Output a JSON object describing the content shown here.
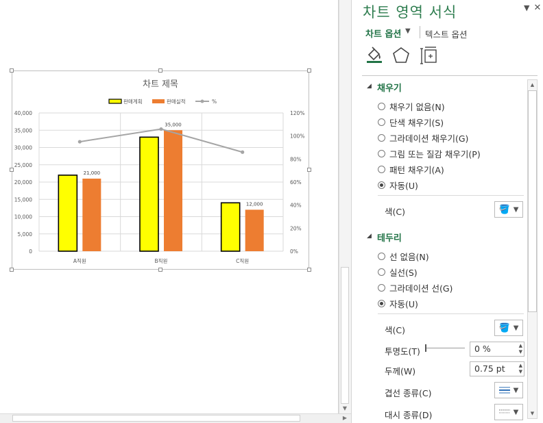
{
  "chart_data": {
    "type": "bar",
    "title": "차트 제목",
    "categories": [
      "A직원",
      "B직원",
      "C직원"
    ],
    "series": [
      {
        "name": "판매계획",
        "values": [
          22000,
          33000,
          14000
        ],
        "color": "#ffff00",
        "border": "#000000",
        "axis": "left"
      },
      {
        "name": "판매실적",
        "values": [
          21000,
          35000,
          12000
        ],
        "color": "#ed7d31",
        "axis": "left"
      },
      {
        "name": "%",
        "type": "line",
        "values": [
          95,
          106,
          86
        ],
        "color": "#a5a5a5",
        "axis": "right"
      }
    ],
    "data_labels": {
      "series": "판매실적",
      "show_for": [
        0,
        1,
        2
      ],
      "texts": [
        "21,000",
        "35,000",
        "12,000"
      ]
    },
    "y_left": {
      "min": 0,
      "max": 40000,
      "ticks": [
        "0",
        "5,000",
        "10,000",
        "15,000",
        "20,000",
        "25,000",
        "30,000",
        "35,000",
        "40,000"
      ]
    },
    "y_right": {
      "min": 0,
      "max": 120,
      "ticks": [
        "0%",
        "20%",
        "40%",
        "60%",
        "80%",
        "100%",
        "120%"
      ]
    },
    "grid": "horizontal",
    "legend_position": "top"
  },
  "pane": {
    "title": "차트 영역 서식",
    "tab_chart": "차트 옵션",
    "tab_text": "텍스트 옵션",
    "icons": [
      "fill-line-icon",
      "effects-pentagon-icon",
      "size-properties-icon"
    ],
    "fill": {
      "heading": "채우기",
      "options": [
        "채우기 없음(N)",
        "단색 채우기(S)",
        "그라데이션 채우기(G)",
        "그림 또는 질감 채우기(P)",
        "패턴 채우기(A)",
        "자동(U)"
      ],
      "selected": 5,
      "color_label": "색(C)"
    },
    "border": {
      "heading": "테두리",
      "options": [
        "선 없음(N)",
        "실선(S)",
        "그라데이션 선(G)",
        "자동(U)"
      ],
      "selected": 3,
      "color_label": "색(C)",
      "transparency_label": "투명도(T)",
      "transparency_value": "0 %",
      "width_label": "두께(W)",
      "width_value": "0.75 pt",
      "compound_label": "겹선 종류(C)",
      "dash_label": "대시 종류(D)"
    }
  }
}
